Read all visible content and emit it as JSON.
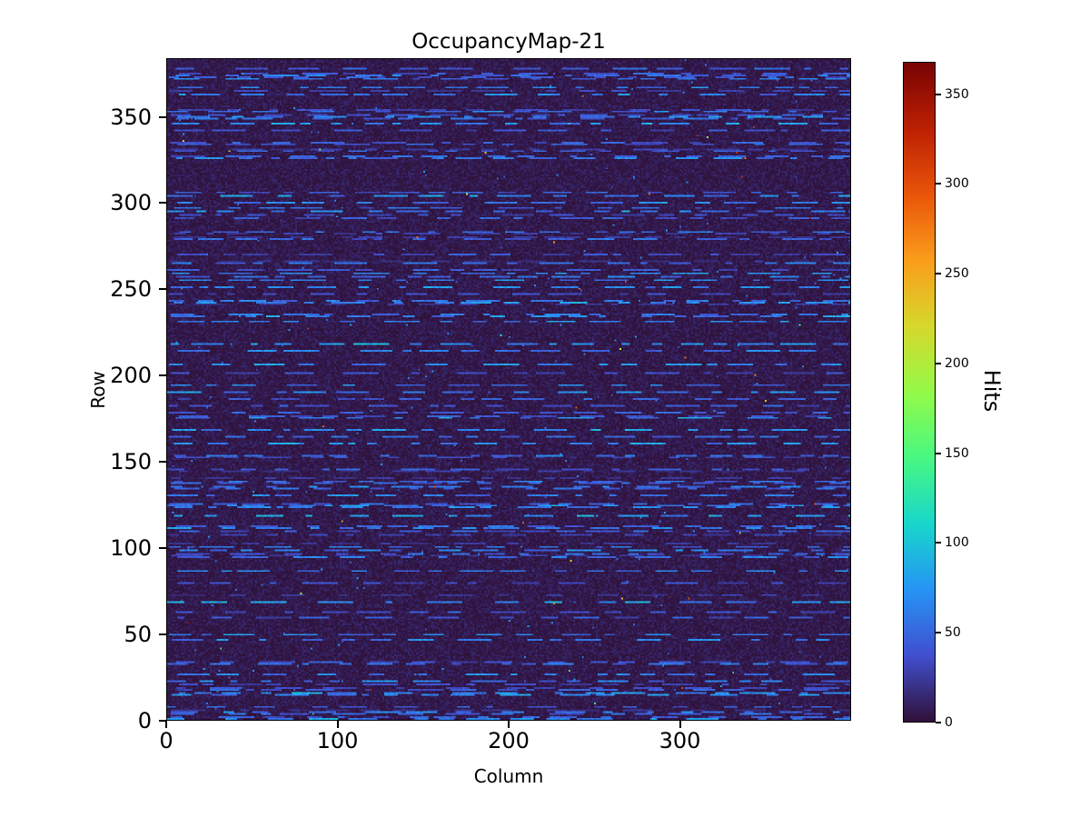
{
  "chart_data": {
    "type": "heatmap",
    "title": "OccupancyMap-21",
    "xlabel": "Column",
    "ylabel": "Row",
    "n_cols": 400,
    "n_rows": 384,
    "xlim": [
      0,
      400
    ],
    "ylim": [
      0,
      384
    ],
    "xticks": [
      0,
      100,
      200,
      300
    ],
    "yticks": [
      0,
      50,
      100,
      150,
      200,
      250,
      300,
      350
    ],
    "colormap": "turbo",
    "colormap_anchors": [
      "#30123b",
      "#4150d0",
      "#2695f5",
      "#18d7cb",
      "#48f882",
      "#94fa48",
      "#d6d92c",
      "#fb9e1b",
      "#ea560a",
      "#bd2103",
      "#7a0403"
    ],
    "colorbar": {
      "label": "Hits",
      "ticks": [
        0,
        50,
        100,
        150,
        200,
        250,
        300,
        350
      ],
      "vmin": 0,
      "vmax": 368
    },
    "pattern": {
      "description": "Low-occupancy dark background with horizontal dashed streaks of moderate occupancy (blue) and sparse isolated hot pixels (green/yellow/orange)",
      "seed": 21,
      "background_max": 14,
      "streak_row_fraction": 0.32,
      "streak_value_min": 38,
      "streak_value_max": 72,
      "speckle_count": 260,
      "hot_pixel_count": 48,
      "hot_value_min": 120
    }
  }
}
